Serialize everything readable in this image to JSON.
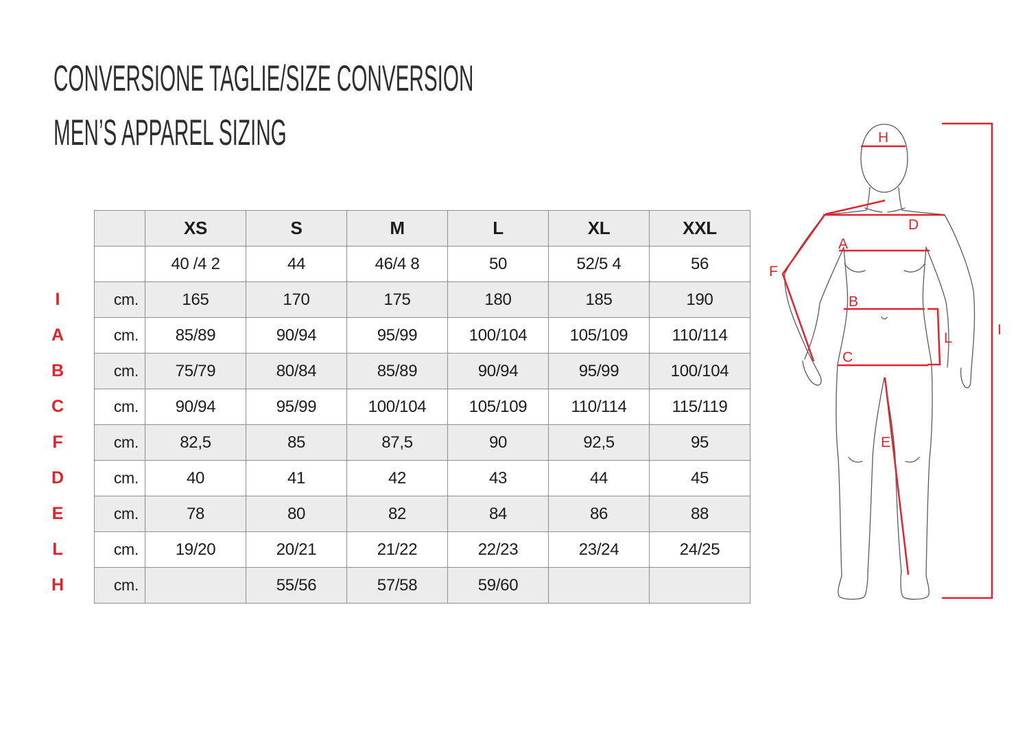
{
  "page": {
    "title_line1": "CONVERSIONE TAGLIE/SIZE CONVERSION",
    "title_line2": "MEN’S APPAREL SIZING"
  },
  "colors": {
    "accent_red": "#e3222b",
    "row_shade": "#ececec",
    "table_border": "#8f8f8f",
    "text": "#1c1c1c"
  },
  "table": {
    "header": [
      "",
      "XS",
      "S",
      "M",
      "L",
      "XL",
      "XXL"
    ],
    "rows": [
      {
        "label": "",
        "unit": "",
        "shaded": false,
        "values": [
          "40 /4 2",
          "44",
          "46/4 8",
          "50",
          "52/5 4",
          "56"
        ]
      },
      {
        "label": "I",
        "unit": "cm.",
        "shaded": true,
        "values": [
          "165",
          "170",
          "175",
          "180",
          "185",
          "190"
        ]
      },
      {
        "label": "A",
        "unit": "cm.",
        "shaded": false,
        "values": [
          "85/89",
          "90/94",
          "95/99",
          "100/104",
          "105/109",
          "110/114"
        ]
      },
      {
        "label": "B",
        "unit": "cm.",
        "shaded": true,
        "values": [
          "75/79",
          "80/84",
          "85/89",
          "90/94",
          "95/99",
          "100/104"
        ]
      },
      {
        "label": "C",
        "unit": "cm.",
        "shaded": false,
        "values": [
          "90/94",
          "95/99",
          "100/104",
          "105/109",
          "110/114",
          "115/119"
        ]
      },
      {
        "label": "F",
        "unit": "cm.",
        "shaded": true,
        "values": [
          "82,5",
          "85",
          "87,5",
          "90",
          "92,5",
          "95"
        ]
      },
      {
        "label": "D",
        "unit": "cm.",
        "shaded": false,
        "values": [
          "40",
          "41",
          "42",
          "43",
          "44",
          "45"
        ]
      },
      {
        "label": "E",
        "unit": "cm.",
        "shaded": true,
        "values": [
          "78",
          "80",
          "82",
          "84",
          "86",
          "88"
        ]
      },
      {
        "label": "L",
        "unit": "cm.",
        "shaded": false,
        "values": [
          "19/20",
          "20/21",
          "21/22",
          "22/23",
          "23/24",
          "24/25"
        ]
      },
      {
        "label": "H",
        "unit": "cm.",
        "shaded": true,
        "values": [
          "",
          "55/56",
          "57/58",
          "59/60",
          "",
          ""
        ]
      }
    ]
  },
  "figure": {
    "labels": {
      "H": "H",
      "D": "D",
      "A": "A",
      "F": "F",
      "B": "B",
      "L": "L",
      "C": "C",
      "E": "E",
      "I": "I"
    }
  }
}
